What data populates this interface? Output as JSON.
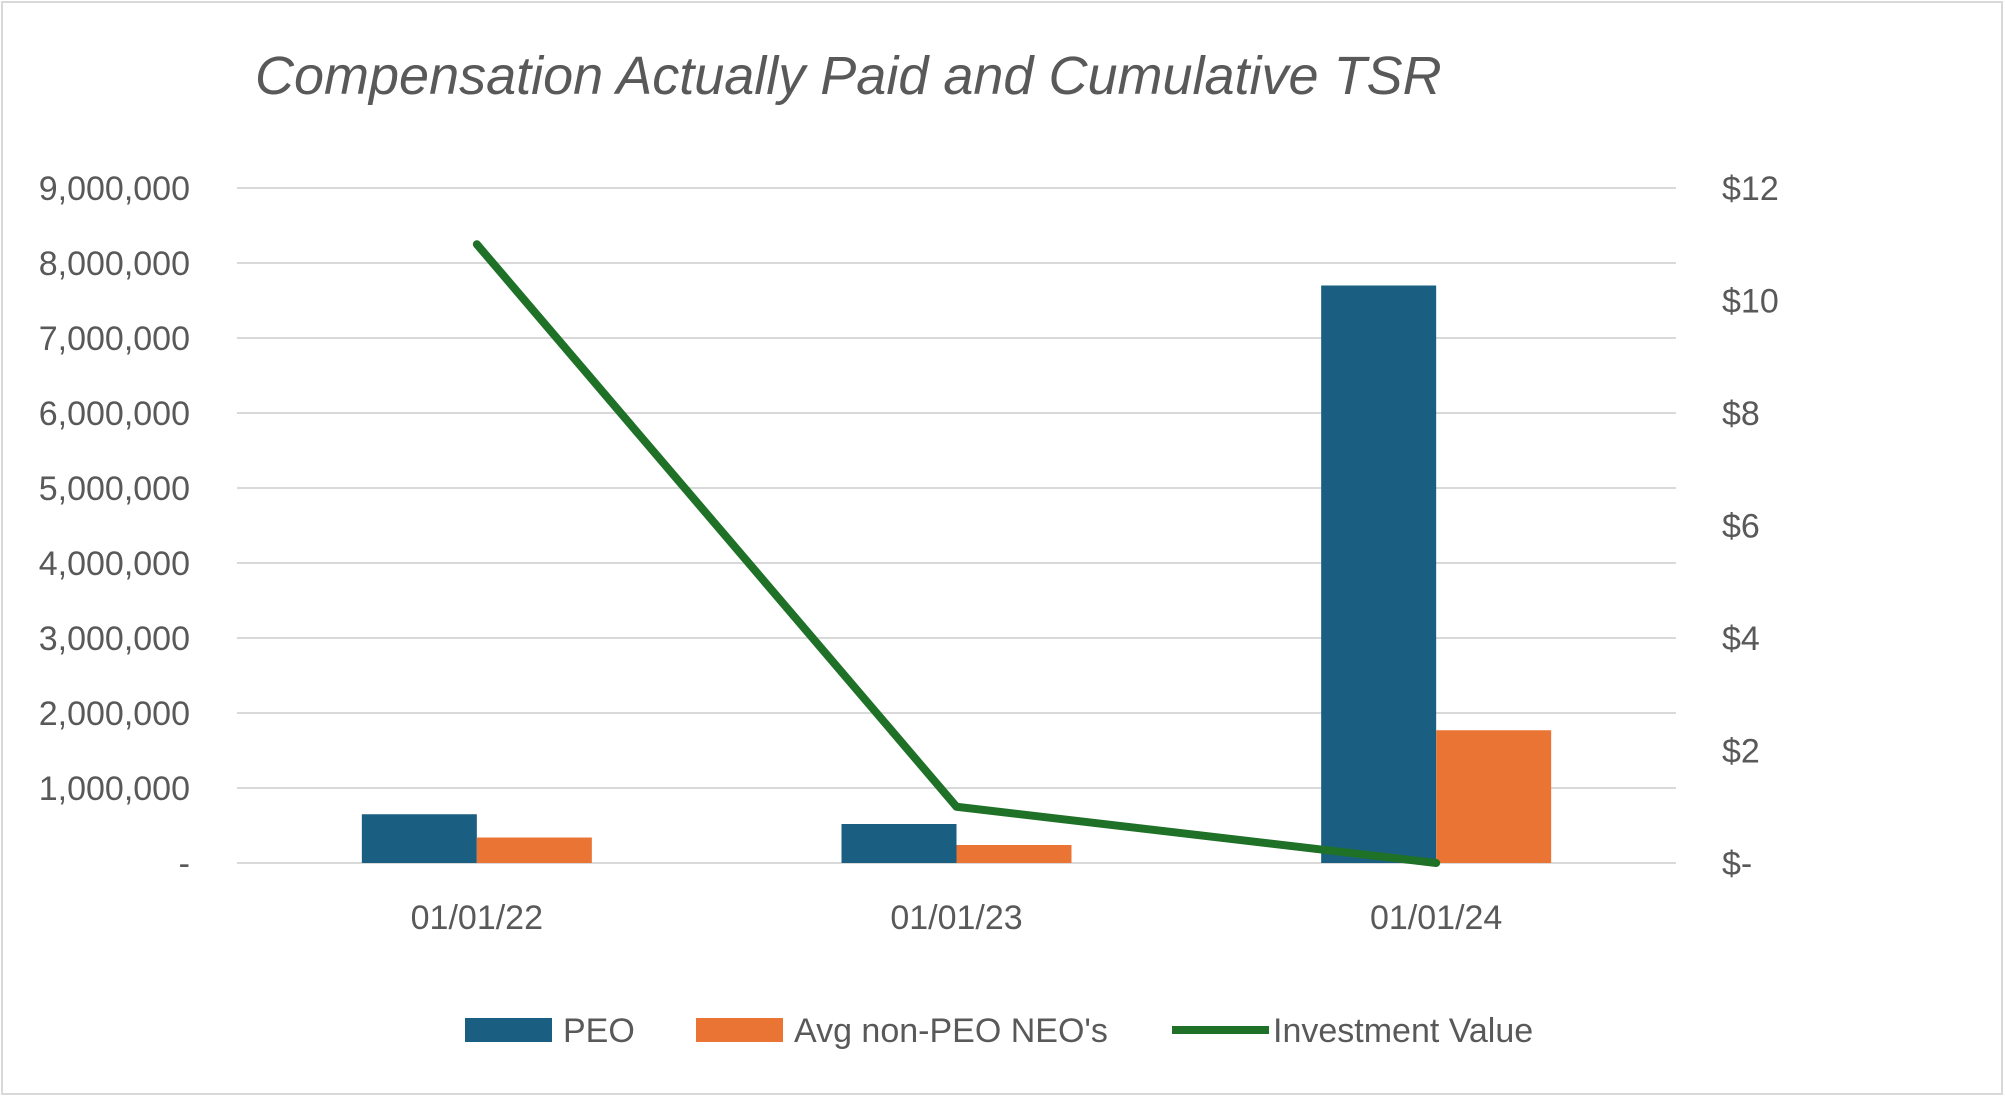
{
  "chart_data": {
    "type": "bar+line",
    "title": "Compensation Actually Paid and Cumulative TSR",
    "categories": [
      "01/01/22",
      "01/01/23",
      "01/01/24"
    ],
    "series": [
      {
        "name": "PEO",
        "type": "bar",
        "axis": "left",
        "color": "#1a5f82",
        "values": [
          650000,
          520000,
          7700000
        ]
      },
      {
        "name": "Avg non-PEO NEO's",
        "type": "bar",
        "axis": "left",
        "color": "#e97434",
        "values": [
          340000,
          240000,
          1770000
        ]
      },
      {
        "name": "Investment Value",
        "type": "line",
        "axis": "right",
        "color": "#1e7127",
        "values": [
          11,
          1,
          0
        ]
      }
    ],
    "y_left": {
      "min": 0,
      "max": 9000000,
      "step": 1000000,
      "tick_labels": [
        "-",
        "1,000,000",
        "2,000,000",
        "3,000,000",
        "4,000,000",
        "5,000,000",
        "6,000,000",
        "7,000,000",
        "8,000,000",
        "9,000,000"
      ]
    },
    "y_right": {
      "min": 0,
      "max": 12,
      "step": 2,
      "tick_labels": [
        "$-",
        "$2",
        "$4",
        "$6",
        "$8",
        "$10",
        "$12"
      ]
    },
    "legend": {
      "placement": "bottom",
      "entries": [
        "PEO",
        "Avg non-PEO NEO's",
        "Investment Value"
      ]
    },
    "grid": true
  }
}
